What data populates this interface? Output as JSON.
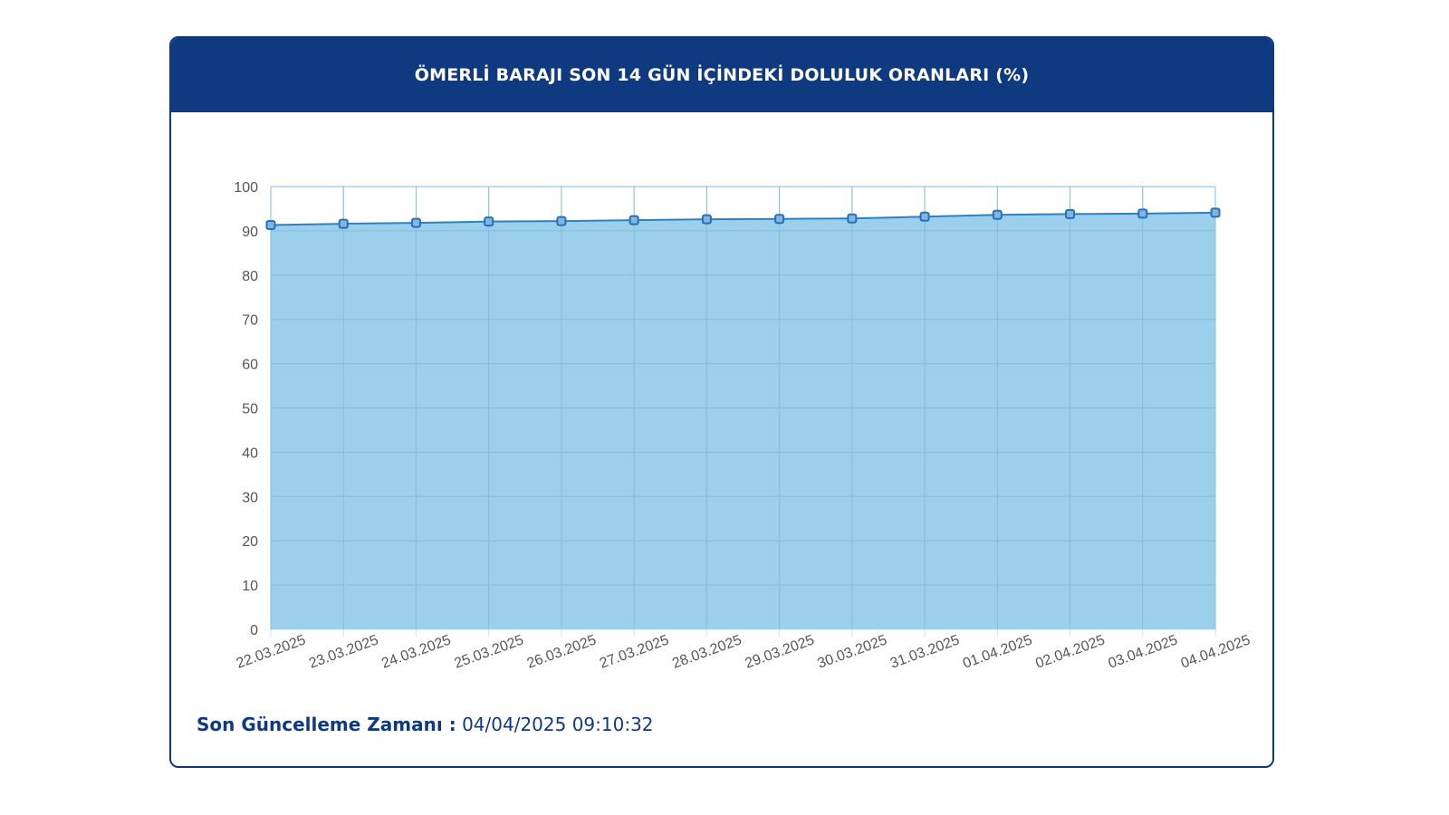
{
  "header": {
    "title": "ÖMERLİ BARAJI SON 14 GÜN İÇİNDEKİ DOLULUK ORANLARI (%)"
  },
  "footer": {
    "label": "Son Güncelleme Zamanı :",
    "value": "04/04/2025 09:10:32"
  },
  "colors": {
    "header_bg": "#0f3a80",
    "area_fill": "#9ccfec",
    "line": "#2a82c4",
    "marker": "#2a6fb5",
    "grid": "#dcdcdc"
  },
  "chart_data": {
    "type": "area",
    "categories": [
      "22.03.2025",
      "23.03.2025",
      "24.03.2025",
      "25.03.2025",
      "26.03.2025",
      "27.03.2025",
      "28.03.2025",
      "29.03.2025",
      "30.03.2025",
      "31.03.2025",
      "01.04.2025",
      "02.04.2025",
      "03.04.2025",
      "04.04.2025"
    ],
    "values": [
      91.3,
      91.6,
      91.8,
      92.1,
      92.2,
      92.4,
      92.6,
      92.7,
      92.8,
      93.2,
      93.6,
      93.8,
      93.9,
      94.1
    ],
    "title": "ÖMERLİ BARAJI SON 14 GÜN İÇİNDEKİ DOLULUK ORANLARI (%)",
    "ylim": [
      0,
      100
    ],
    "yticks": [
      0,
      10,
      20,
      30,
      40,
      50,
      60,
      70,
      80,
      90,
      100
    ],
    "grid": true,
    "legend": "none"
  }
}
